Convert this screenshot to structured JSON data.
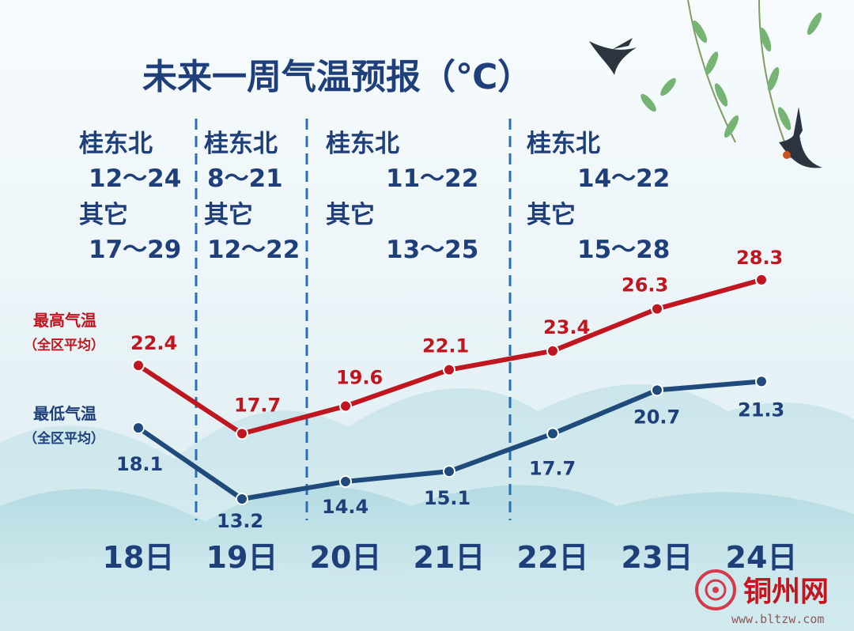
{
  "chart_data": {
    "type": "line",
    "title": "未来一周气温预报（℃）",
    "categories": [
      "18日",
      "19日",
      "20日",
      "21日",
      "22日",
      "23日",
      "24日"
    ],
    "series": [
      {
        "name": "最高气温",
        "subname": "（全区平均）",
        "values": [
          22.4,
          17.7,
          19.6,
          22.1,
          23.4,
          26.3,
          28.3
        ],
        "color": "#c0161f"
      },
      {
        "name": "最低气温",
        "subname": "（全区平均）",
        "values": [
          18.1,
          13.2,
          14.4,
          15.1,
          17.7,
          20.7,
          21.3
        ],
        "color": "#1f4a7c"
      }
    ],
    "value_labels_hi": [
      "22.4",
      "17.7",
      "19.6",
      "22.1",
      "23.4",
      "26.3",
      "28.3"
    ],
    "value_labels_lo": [
      "18.1",
      "13.2",
      "14.4",
      "15.1",
      "17.7",
      "20.7",
      "21.3"
    ],
    "regional_ranges": [
      {
        "region1": "桂东北",
        "range1": "12～24",
        "region2": "其它",
        "range2": "17～29"
      },
      {
        "region1": "桂东北",
        "range1": "8～21",
        "region2": "其它",
        "range2": "12～22"
      },
      {
        "region1": "桂东北",
        "range1": "11～22",
        "region2": "其它",
        "range2": "13～25"
      },
      {
        "region1": "桂东北",
        "range1": "14～22",
        "region2": "其它",
        "range2": "15～28"
      }
    ],
    "grid": false,
    "legend": "left"
  },
  "logo": {
    "name": "铜州网",
    "url": "www.bltzw.com"
  },
  "colors": {
    "title": "#1f3f7a",
    "high": "#c0161f",
    "low": "#1f4a7c",
    "divider": "#2a6fb3"
  }
}
